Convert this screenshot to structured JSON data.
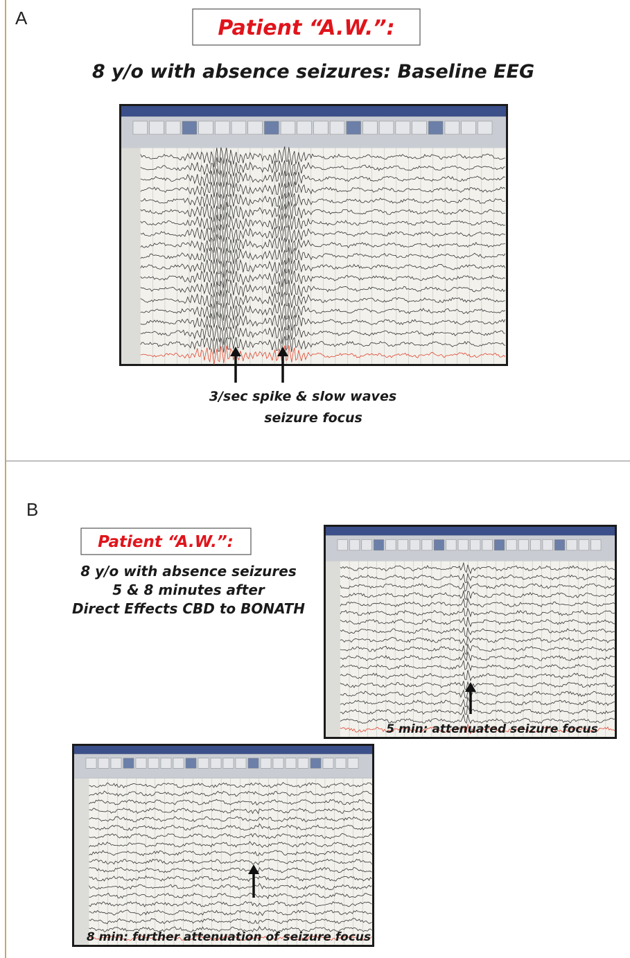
{
  "panel_a": {
    "label": "A",
    "title": "Patient “A.W.”:",
    "subtitle": "8 y/o with absence seizures: Baseline EEG",
    "annotation": [
      "3/sec spike & slow waves",
      "seizure focus"
    ]
  },
  "panel_b": {
    "label": "B",
    "title": "Patient “A.W.”:",
    "subtitle": [
      "8 y/o with absence seizures",
      "5 & 8 minutes after",
      "Direct Effects CBD to BONATH"
    ],
    "caption_5min": "5 min: attenuated seizure focus",
    "caption_8min": "8 min: further attenuation of seizure focus"
  }
}
